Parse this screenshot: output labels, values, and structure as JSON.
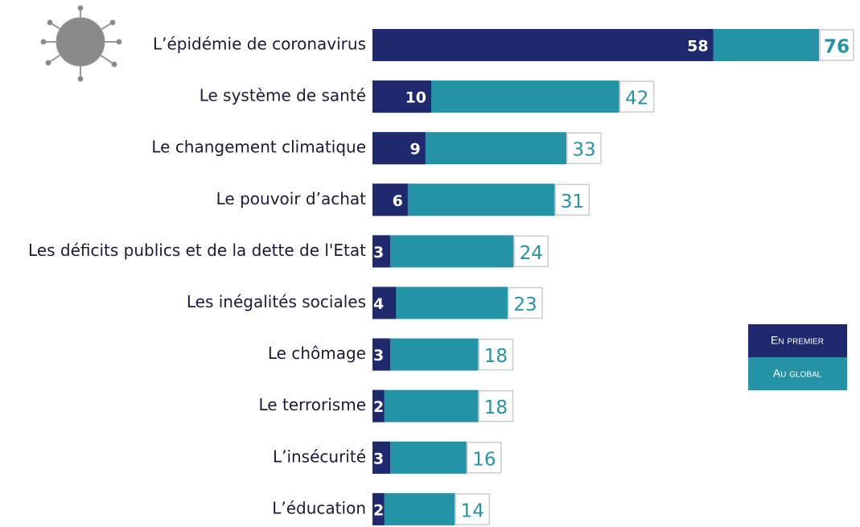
{
  "chart_data": {
    "type": "bar",
    "orientation": "horizontal",
    "overlap": true,
    "categories": [
      "L’épidémie de coronavirus",
      "Le système de santé",
      "Le changement climatique",
      "Le pouvoir d’achat",
      "Les déficits publics et de la dette de l'Etat",
      "Les inégalités sociales",
      "Le chômage",
      "Le terrorisme",
      "L’insécurité",
      "L’éducation"
    ],
    "series": [
      {
        "name": "En premier",
        "color": "#1f2a6e",
        "values": [
          58,
          10,
          9,
          6,
          3,
          4,
          3,
          2,
          3,
          2
        ]
      },
      {
        "name": "Au global",
        "color": "#2593a6",
        "values": [
          76,
          42,
          33,
          31,
          24,
          23,
          18,
          18,
          16,
          14
        ]
      }
    ],
    "legend": "right"
  }
}
